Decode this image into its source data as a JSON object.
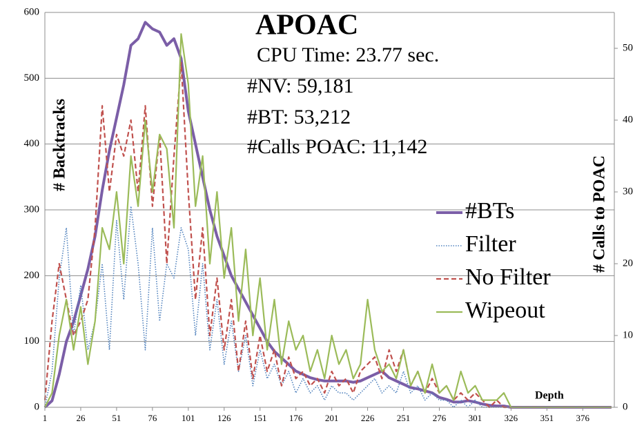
{
  "chart_data": {
    "type": "line",
    "title": "APOAC",
    "annotations": [
      "CPU Time: 23.77 sec.",
      "#NV: 59,181",
      "#BT: 53,212",
      "#Calls POAC: 11,142"
    ],
    "y_label": "# Backtracks",
    "y2_label": "# Calls to POAC",
    "x_label": "Depth",
    "x": [
      1,
      6,
      11,
      16,
      21,
      26,
      31,
      36,
      41,
      46,
      51,
      56,
      61,
      66,
      71,
      76,
      81,
      86,
      91,
      96,
      101,
      106,
      111,
      116,
      121,
      126,
      131,
      136,
      141,
      146,
      151,
      156,
      161,
      166,
      171,
      176,
      181,
      186,
      191,
      196,
      201,
      206,
      211,
      216,
      221,
      226,
      231,
      236,
      241,
      246,
      251,
      256,
      261,
      266,
      271,
      276,
      281,
      286,
      291,
      296,
      301,
      306,
      311,
      316,
      321,
      326,
      331,
      336,
      341,
      346,
      351,
      356,
      361,
      366,
      371,
      376,
      381,
      386,
      391,
      396
    ],
    "xlim": [
      1,
      398
    ],
    "xticks": [
      1,
      26,
      51,
      76,
      101,
      126,
      151,
      176,
      201,
      226,
      251,
      276,
      301,
      326,
      351,
      376
    ],
    "ylim": [
      0,
      600
    ],
    "yticks": [
      0,
      100,
      200,
      300,
      400,
      500,
      600
    ],
    "y2lim": [
      0,
      55
    ],
    "y2ticks": [
      0,
      10,
      20,
      30,
      40,
      50
    ],
    "grid": true,
    "series": [
      {
        "name": "#BTs",
        "color": "#7b5ea7",
        "line_style": "thick",
        "values": [
          0,
          10,
          50,
          100,
          130,
          170,
          210,
          260,
          330,
          390,
          440,
          490,
          550,
          560,
          585,
          575,
          570,
          550,
          560,
          530,
          450,
          400,
          350,
          300,
          260,
          230,
          200,
          180,
          160,
          140,
          120,
          100,
          85,
          75,
          65,
          55,
          50,
          45,
          42,
          40,
          40,
          40,
          40,
          38,
          40,
          45,
          50,
          55,
          45,
          40,
          35,
          30,
          28,
          25,
          22,
          15,
          12,
          8,
          8,
          10,
          8,
          5,
          3,
          2,
          2,
          0,
          0,
          0,
          0,
          0,
          0,
          0,
          0,
          0,
          0,
          0,
          0,
          0,
          0,
          0
        ]
      },
      {
        "name": "Filter",
        "color": "#4f81bd",
        "line_style": "dotted",
        "axis": "y2",
        "values": [
          0,
          5,
          18,
          25,
          10,
          17,
          8,
          12,
          20,
          8,
          26,
          15,
          28,
          20,
          8,
          25,
          12,
          20,
          18,
          25,
          22,
          10,
          20,
          8,
          15,
          6,
          12,
          5,
          10,
          3,
          8,
          4,
          6,
          3,
          5,
          2,
          4,
          2,
          3,
          1,
          3,
          2,
          2,
          1,
          2,
          3,
          4,
          2,
          3,
          2,
          5,
          2,
          3,
          1,
          2,
          1,
          1,
          0,
          1,
          0,
          1,
          0,
          0,
          0,
          0,
          0,
          0,
          0,
          0,
          0,
          0,
          0,
          0,
          0,
          0,
          0,
          0,
          0,
          0,
          0
        ]
      },
      {
        "name": "No Filter",
        "color": "#c0504d",
        "line_style": "dashed",
        "axis": "y2",
        "values": [
          1,
          12,
          20,
          15,
          10,
          12,
          15,
          25,
          42,
          30,
          38,
          35,
          40,
          30,
          42,
          28,
          38,
          20,
          35,
          48,
          30,
          15,
          25,
          10,
          18,
          8,
          15,
          5,
          12,
          4,
          10,
          5,
          8,
          3,
          7,
          4,
          5,
          3,
          4,
          2,
          5,
          3,
          4,
          2,
          5,
          6,
          7,
          4,
          8,
          5,
          8,
          3,
          5,
          2,
          4,
          2,
          3,
          1,
          2,
          1,
          2,
          1,
          0,
          1,
          0,
          0,
          0,
          0,
          0,
          0,
          0,
          0,
          0,
          0,
          0,
          0,
          0,
          0,
          0,
          0
        ]
      },
      {
        "name": "Wipeout",
        "color": "#9bbb59",
        "line_style": "solid",
        "axis": "y2",
        "values": [
          0,
          2,
          10,
          15,
          8,
          14,
          6,
          12,
          25,
          22,
          30,
          20,
          35,
          28,
          40,
          30,
          38,
          36,
          25,
          52,
          45,
          28,
          35,
          20,
          30,
          18,
          25,
          12,
          22,
          10,
          18,
          8,
          15,
          6,
          12,
          8,
          10,
          5,
          8,
          4,
          10,
          6,
          8,
          4,
          6,
          15,
          8,
          5,
          6,
          4,
          8,
          3,
          5,
          2,
          6,
          2,
          3,
          1,
          5,
          2,
          3,
          1,
          1,
          1,
          2,
          0,
          0,
          0,
          0,
          0,
          0,
          0,
          0,
          0,
          0,
          0,
          0,
          0,
          0,
          0
        ]
      }
    ]
  }
}
